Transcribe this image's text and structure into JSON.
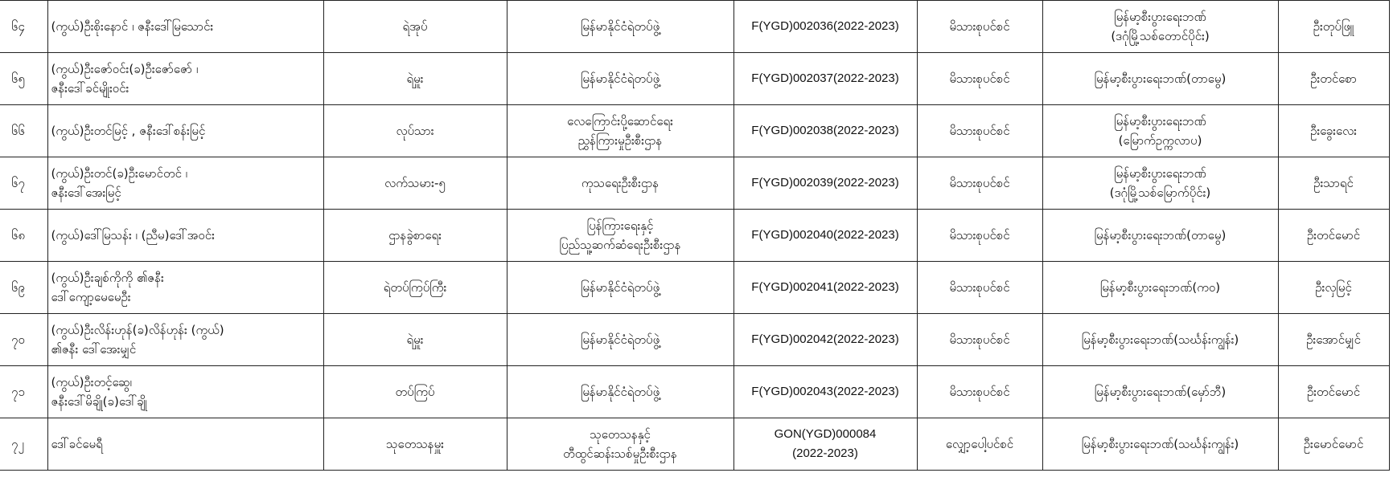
{
  "rows": [
    {
      "no": "၆၄",
      "name": [
        "(ကွယ်)ဦးစိုးနောင် ၊ ဇနီးဒေါ်မြသောင်း"
      ],
      "rank": "ရဲအုပ်",
      "dept": [
        "မြန်မာနိုင်ငံရဲတပ်ဖွဲ့"
      ],
      "license": [
        "F(YGD)002036(2022-2023)"
      ],
      "type": "မိသားစုပင်စင်",
      "bank": [
        "မြန်မာ့စီးပွားရေးဘဏ်",
        "(ဒဂုံမြို့သစ်တောင်ပိုင်း)"
      ],
      "agent": "ဦးတုပ်ဖြူ"
    },
    {
      "no": "၆၅",
      "name": [
        "(ကွယ်)ဦးဇော်ဝင်း(ခ)ဦးဇော်ဇော် ၊",
        "ဇနီးဒေါ်ခင်မျိုးဝင်း"
      ],
      "rank": "ရဲမှူး",
      "dept": [
        "မြန်မာနိုင်ငံရဲတပ်ဖွဲ့"
      ],
      "license": [
        "F(YGD)002037(2022-2023)"
      ],
      "type": "မိသားစုပင်စင်",
      "bank": [
        "မြန်မာ့စီးပွားရေးဘဏ်(တာမွေ)"
      ],
      "agent": "ဦးတင်စော"
    },
    {
      "no": "၆၆",
      "name": [
        "(ကွယ်)ဦးတင်မြင့် , ဇနီးဒေါ်စန်းမြင့်"
      ],
      "rank": "လုပ်သား",
      "dept": [
        "လေကြောင်းပို့ဆောင်ရေး",
        "ညွှန်ကြားမှုဦးစီးဌာန"
      ],
      "license": [
        "F(YGD)002038(2022-2023)"
      ],
      "type": "မိသားစုပင်စင်",
      "bank": [
        "မြန်မာ့စီးပွားရေးဘဏ်",
        "(မြောက်ဥက္ကလာပ)"
      ],
      "agent": "ဦးခွေးလေး"
    },
    {
      "no": "၆၇",
      "name": [
        "(ကွယ်)ဦးတင်(ခ)ဦးမောင်တင် ၊",
        "ဇနီးဒေါ်အေးမြင့်"
      ],
      "rank": "လက်သမား-၅",
      "dept": [
        "ကုသရေးဦးစီးဌာန"
      ],
      "license": [
        "F(YGD)002039(2022-2023)"
      ],
      "type": "မိသားစုပင်စင်",
      "bank": [
        "မြန်မာ့စီးပွားရေးဘဏ်",
        "(ဒဂုံမြို့သစ်မြောက်ပိုင်း)"
      ],
      "agent": "ဦးသာရင်"
    },
    {
      "no": "၆၈",
      "name": [
        "(ကွယ်)ဒေါ်မြသန်း ၊ (ညီမ)ဒေါ်အဝင်း"
      ],
      "rank": "ဌာနခွဲစာရေး",
      "dept": [
        "ပြန်ကြားရေးနှင့်",
        "ပြည်သူ့ဆက်ဆံရေးဦးစီးဌာန"
      ],
      "license": [
        "F(YGD)002040(2022-2023)"
      ],
      "type": "မိသားစုပင်စင်",
      "bank": [
        "မြန်မာ့စီးပွားရေးဘဏ်(တာမွေ)"
      ],
      "agent": "ဦးတင်မောင်"
    },
    {
      "no": "၆၉",
      "name": [
        "(ကွယ်)ဦးချစ်ကိုကို ၏ဇနီး",
        "ဒေါ်ကျော့မေမေဦး"
      ],
      "rank": "ရဲတပ်ကြပ်ကြီး",
      "dept": [
        "မြန်မာနိုင်ငံရဲတပ်ဖွဲ့"
      ],
      "license": [
        "F(YGD)002041(2022-2023)"
      ],
      "type": "မိသားစုပင်စင်",
      "bank": [
        "မြန်မာ့စီးပွားရေးဘဏ်(ကဝ)"
      ],
      "agent": "ဦးလှမြင့်"
    },
    {
      "no": "၇၀",
      "name": [
        "(ကွယ်)ဦးလိန်းဟုန်(ခ)လိန်ဟုန်း (ကွယ်)",
        "၏ဇနီး ဒေါ်အေးမျှင်"
      ],
      "rank": "ရဲမှူး",
      "dept": [
        "မြန်မာနိုင်ငံရဲတပ်ဖွဲ့"
      ],
      "license": [
        "F(YGD)002042(2022-2023)"
      ],
      "type": "မိသားစုပင်စင်",
      "bank": [
        "မြန်မာ့စီးပွားရေးဘဏ်(သင်္ဃန်းကျွန်း)"
      ],
      "agent": "ဦးအောင်မျှင်"
    },
    {
      "no": "၇၁",
      "name": [
        "(ကွယ်)ဦးတင့်ဆွေ၊",
        "ဇနီးဒေါ်မိချို(ခ)ဒေါ်ချို"
      ],
      "rank": "တပ်ကြပ်",
      "dept": [
        "မြန်မာနိုင်ငံရဲတပ်ဖွဲ့"
      ],
      "license": [
        "F(YGD)002043(2022-2023)"
      ],
      "type": "မိသားစုပင်စင်",
      "bank": [
        "မြန်မာ့စီးပွားရေးဘဏ်(မှော်ဘီ)"
      ],
      "agent": "ဦးတင်မောင်"
    },
    {
      "no": "၇၂",
      "name": [
        "ဒေါ်ခင်မေရီ"
      ],
      "rank": "သုတေသနမှူး",
      "dept": [
        "သုတေသနနှင့်",
        "တီထွင်ဆန်းသစ်မှုဦးစီးဌာန"
      ],
      "license": [
        "GON(YGD)000084",
        "(2022-2023)"
      ],
      "type": "လျှော့ပေါ့ပင်စင်",
      "bank": [
        "မြန်မာ့စီးပွားရေးဘဏ်(သင်္ဃန်းကျွန်း)"
      ],
      "agent": "ဦးမောင်မောင်"
    }
  ]
}
